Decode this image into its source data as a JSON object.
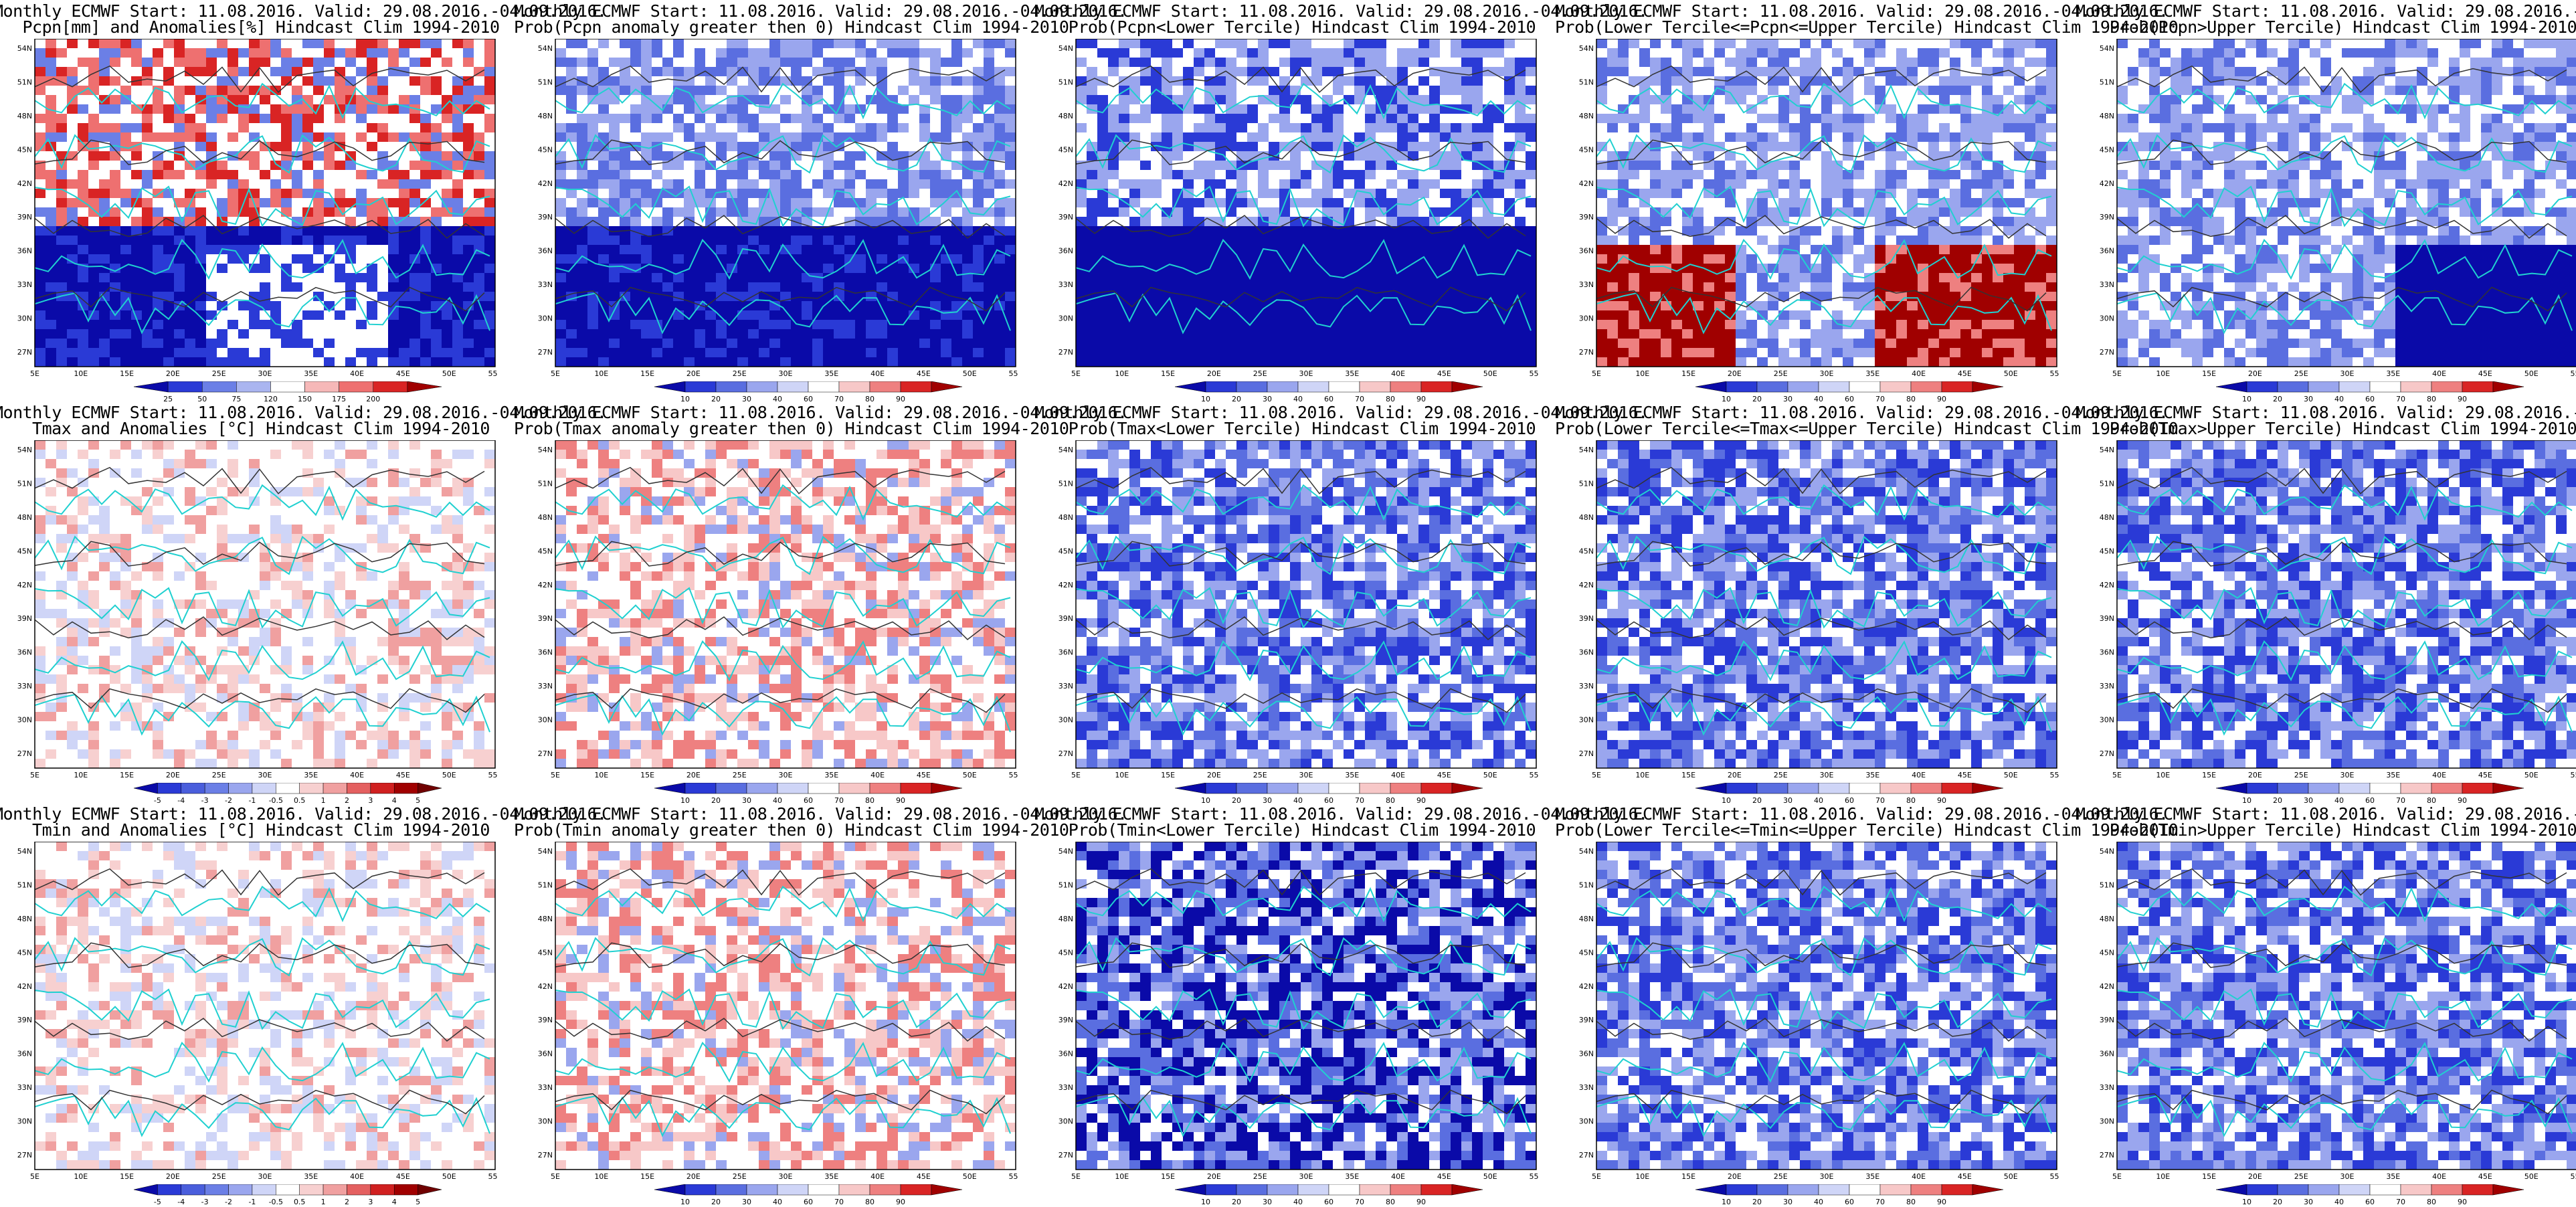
{
  "layout_rows": 3,
  "layout_cols": 5,
  "title_line1": "Monthly ECMWF Start: 11.08.2016. Valid: 29.08.2016.-04.09.2016.",
  "lat_labels": [
    "54N",
    "51N",
    "48N",
    "45N",
    "42N",
    "39N",
    "36N",
    "33N",
    "30N",
    "27N"
  ],
  "lon_labels": [
    "5E",
    "10E",
    "15E",
    "20E",
    "25E",
    "30E",
    "35E",
    "40E",
    "45E",
    "50E",
    "55E"
  ],
  "colorbars": {
    "pcpn_anom": {
      "labels": [
        "25",
        "50",
        "75",
        "120",
        "150",
        "175",
        "200"
      ],
      "colors": [
        "#0a0aa8",
        "#2a3ad6",
        "#6b7fe6",
        "#aab5f0",
        "#ffffff",
        "#f6b8b8",
        "#ee7070",
        "#d92424",
        "#a00000"
      ]
    },
    "prob": {
      "labels": [
        "10",
        "20",
        "30",
        "40",
        "60",
        "70",
        "80",
        "90"
      ],
      "colors": [
        "#0a0aa8",
        "#2a3ad6",
        "#5a6ee0",
        "#9aa6ee",
        "#cfd5f7",
        "#ffffff",
        "#f7c8c8",
        "#ee8080",
        "#d92424",
        "#a00000"
      ]
    },
    "temp_anom": {
      "labels": [
        "-5",
        "-4",
        "-3",
        "-2",
        "-1",
        "-0.5",
        "0.5",
        "1",
        "2",
        "3",
        "4",
        "5"
      ],
      "colors": [
        "#0a0aa8",
        "#2a3ad6",
        "#4a5edc",
        "#6b7fe6",
        "#9aa6ee",
        "#cfd5f7",
        "#ffffff",
        "#f7d0d0",
        "#f0a0a0",
        "#e46060",
        "#d02020",
        "#a00000",
        "#700000"
      ]
    }
  },
  "panels": [
    {
      "line2": "Pcpn[mm] and Anomalies[%] Hindcast Clim 1994-2010",
      "cbar": "pcpn_anom",
      "bias": "mixed_pcpn"
    },
    {
      "line2": "Prob(Pcpn anomaly greater then 0) Hindcast Clim 1994-2010",
      "cbar": "prob",
      "bias": "blue_strong"
    },
    {
      "line2": "Prob(Pcpn<Lower Tercile) Hindcast Clim 1994-2010",
      "cbar": "prob",
      "bias": "blue_south"
    },
    {
      "line2": "Prob(Lower Tercile<=Pcpn<=Upper Tercile) Hindcast Clim 1994-2010",
      "cbar": "prob",
      "bias": "red_south"
    },
    {
      "line2": "Prob(Pcpn>Upper Tercile) Hindcast Clim 1994-2010",
      "cbar": "prob",
      "bias": "blue_southeast"
    },
    {
      "line2": "Tmax and Anomalies [°C] Hindcast Clim 1994-2010",
      "cbar": "temp_anom",
      "bias": "light_mixed"
    },
    {
      "line2": "Prob(Tmax anomaly greater then 0) Hindcast Clim 1994-2010",
      "cbar": "prob",
      "bias": "red_light"
    },
    {
      "line2": "Prob(Tmax<Lower Tercile) Hindcast Clim 1994-2010",
      "cbar": "prob",
      "bias": "blue_medium"
    },
    {
      "line2": "Prob(Lower Tercile<=Tmax<=Upper Tercile) Hindcast Clim 1994-2010",
      "cbar": "prob",
      "bias": "blue_medium"
    },
    {
      "line2": "Prob(Tmax>Upper Tercile) Hindcast Clim 1994-2010",
      "cbar": "prob",
      "bias": "blue_medium"
    },
    {
      "line2": "Tmin and Anomalies [°C] Hindcast Clim 1994-2010",
      "cbar": "temp_anom",
      "bias": "light_mixed"
    },
    {
      "line2": "Prob(Tmin anomaly greater then 0) Hindcast Clim 1994-2010",
      "cbar": "prob",
      "bias": "red_light"
    },
    {
      "line2": "Prob(Tmin<Lower Tercile) Hindcast Clim 1994-2010",
      "cbar": "prob",
      "bias": "blue_strong2"
    },
    {
      "line2": "Prob(Lower Tercile<=Tmin<=Upper Tercile) Hindcast Clim 1994-2010",
      "cbar": "prob",
      "bias": "blue_medium"
    },
    {
      "line2": "Prob(Tmin>Upper Tercile) Hindcast Clim 1994-2010",
      "cbar": "prob",
      "bias": "blue_medium"
    }
  ]
}
